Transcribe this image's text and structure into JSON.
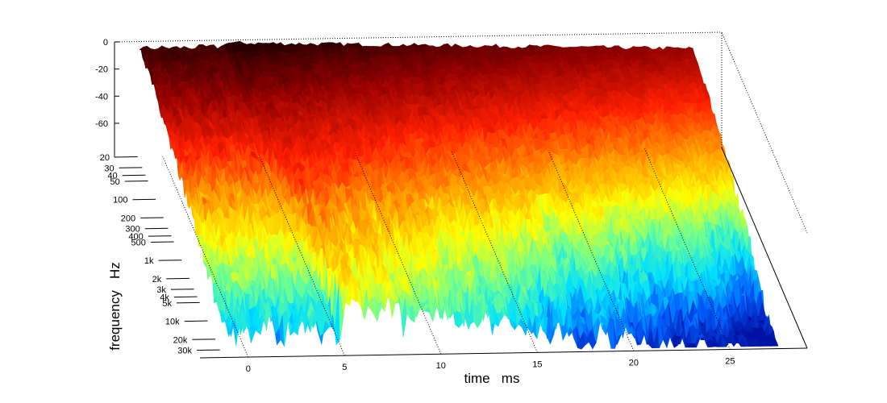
{
  "chart_data": {
    "type": "waterfall-surface",
    "title": "",
    "xlabel": "time   ms",
    "ylabel": "frequency   Hz",
    "zlabel": "",
    "x_ticks": [
      0,
      5,
      10,
      15,
      20,
      25
    ],
    "x_range": [
      -2.5,
      29
    ],
    "y_ticks": [
      "20",
      "30",
      "40",
      "50",
      "100",
      "200",
      "300",
      "400",
      "500",
      "1k",
      "2k",
      "3k",
      "4k",
      "5k",
      "10k",
      "20k",
      "30k"
    ],
    "y_tick_values": [
      20,
      30,
      40,
      50,
      100,
      200,
      300,
      400,
      500,
      1000,
      2000,
      3000,
      4000,
      5000,
      10000,
      20000,
      30000
    ],
    "y_range": [
      20,
      40000
    ],
    "y_scale": "log",
    "z_ticks": [
      "0",
      "-20",
      "-40",
      "-60"
    ],
    "z_tick_values": [
      0,
      -20,
      -40,
      -60
    ],
    "z_range": [
      -85,
      0
    ],
    "colormap": [
      "#00008f",
      "#0060ff",
      "#00dfff",
      "#70ff90",
      "#ffff00",
      "#ff9a00",
      "#ff2000",
      "#8f0000",
      "#000000"
    ],
    "grid": true
  }
}
